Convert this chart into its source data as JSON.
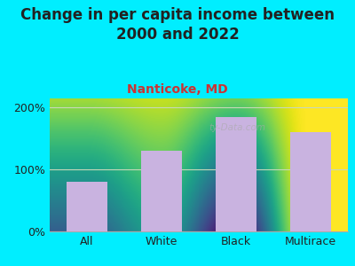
{
  "title": "Change in per capita income between\n2000 and 2022",
  "subtitle": "Nanticoke, MD",
  "categories": [
    "All",
    "White",
    "Black",
    "Multirace"
  ],
  "values": [
    80,
    130,
    185,
    160
  ],
  "bar_color": "#c9b3e0",
  "background_outer": "#00eeff",
  "title_fontsize": 12,
  "subtitle_fontsize": 10,
  "subtitle_color": "#cc3333",
  "title_color": "#222222",
  "tick_label_fontsize": 9,
  "ytick_labels": [
    "0%",
    "100%",
    "200%"
  ],
  "ytick_values": [
    0,
    100,
    200
  ],
  "ylim": [
    0,
    215
  ],
  "watermark": "ty-Data.com",
  "xlabel_fontsize": 9,
  "grid_color": "#c8d8b8",
  "plot_bg_top": "#f4f8ee",
  "plot_bg_bottom": "#c8ddb0"
}
